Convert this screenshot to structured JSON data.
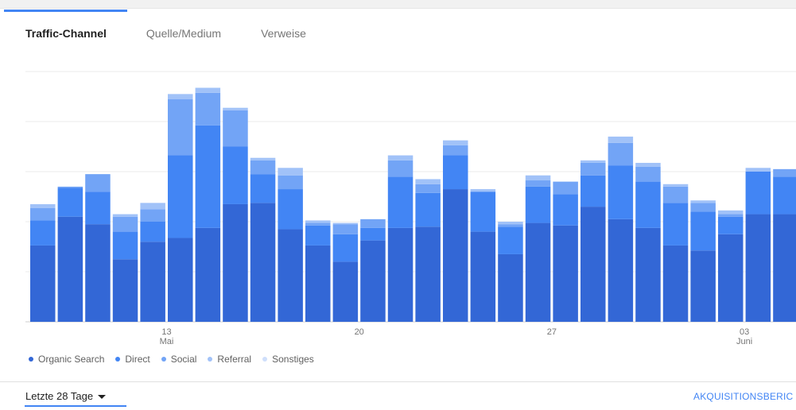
{
  "tabs": [
    {
      "label": "Traffic-Channel",
      "active": true
    },
    {
      "label": "Quelle/Medium",
      "active": false
    },
    {
      "label": "Verweise",
      "active": false
    }
  ],
  "legend": [
    {
      "label": "Organic Search",
      "color": "#3367d6"
    },
    {
      "label": "Direct",
      "color": "#4285f4"
    },
    {
      "label": "Social",
      "color": "#72a4f6"
    },
    {
      "label": "Referral",
      "color": "#a1c2f8"
    },
    {
      "label": "Sonstiges",
      "color": "#cfdffb"
    }
  ],
  "footer": {
    "date_range": "Letzte 28 Tage",
    "report_link": "AKQUISITIONSBERIC"
  },
  "chart_data": {
    "type": "bar",
    "stacked": true,
    "ylim": [
      0,
      100
    ],
    "grid": true,
    "legend_position": "bottom-left",
    "x_ticks": [
      {
        "index": 4.5,
        "label": "13",
        "sublabel": "Mai"
      },
      {
        "index": 11.5,
        "label": "20",
        "sublabel": ""
      },
      {
        "index": 18.5,
        "label": "27",
        "sublabel": ""
      },
      {
        "index": 25.5,
        "label": "03",
        "sublabel": "Juni"
      }
    ],
    "categories": [
      "1",
      "2",
      "3",
      "4",
      "5",
      "6",
      "7",
      "8",
      "9",
      "10",
      "11",
      "12",
      "13",
      "14",
      "15",
      "16",
      "17",
      "18",
      "19",
      "20",
      "21",
      "22",
      "23",
      "24",
      "25",
      "26",
      "27",
      "28"
    ],
    "series": [
      {
        "name": "Organic Search",
        "values": [
          30.5,
          42,
          39,
          25,
          32,
          33.5,
          37.5,
          47,
          47.5,
          37,
          30.5,
          24,
          32.5,
          37.5,
          38,
          53,
          36,
          27,
          39.5,
          38.5,
          46,
          41,
          37.5,
          30.5,
          28.5,
          35,
          43,
          43
        ]
      },
      {
        "name": "Direct",
        "values": [
          10,
          11.5,
          13,
          11,
          8,
          33,
          41,
          23,
          11.5,
          16,
          8,
          11,
          5,
          20.5,
          13.5,
          13.5,
          16,
          11,
          14.5,
          12.5,
          12.5,
          21.5,
          18.5,
          17,
          15.5,
          7,
          17,
          15
        ]
      },
      {
        "name": "Social",
        "values": [
          5,
          0.5,
          7,
          6,
          5,
          22.5,
          13,
          14.5,
          5.5,
          5.5,
          1,
          4,
          3.5,
          6.5,
          3.5,
          4,
          0,
          1,
          2.5,
          5,
          5,
          9,
          6,
          6.5,
          3.5,
          1,
          0,
          3
        ]
      },
      {
        "name": "Referral",
        "values": [
          1.5,
          0,
          0,
          1,
          2.5,
          2,
          2,
          1,
          1,
          3,
          1,
          0.5,
          0,
          2,
          2,
          2,
          1,
          1,
          2,
          0,
          1,
          2.5,
          1.5,
          1,
          1,
          1.5,
          1.5,
          0
        ]
      },
      {
        "name": "Sonstiges",
        "values": [
          0,
          0,
          0,
          0,
          0,
          0,
          0,
          0,
          0,
          0,
          0,
          0,
          0,
          0,
          0,
          0,
          0,
          0,
          0,
          0,
          0,
          0,
          0,
          0,
          0,
          0,
          0,
          0
        ]
      }
    ]
  }
}
